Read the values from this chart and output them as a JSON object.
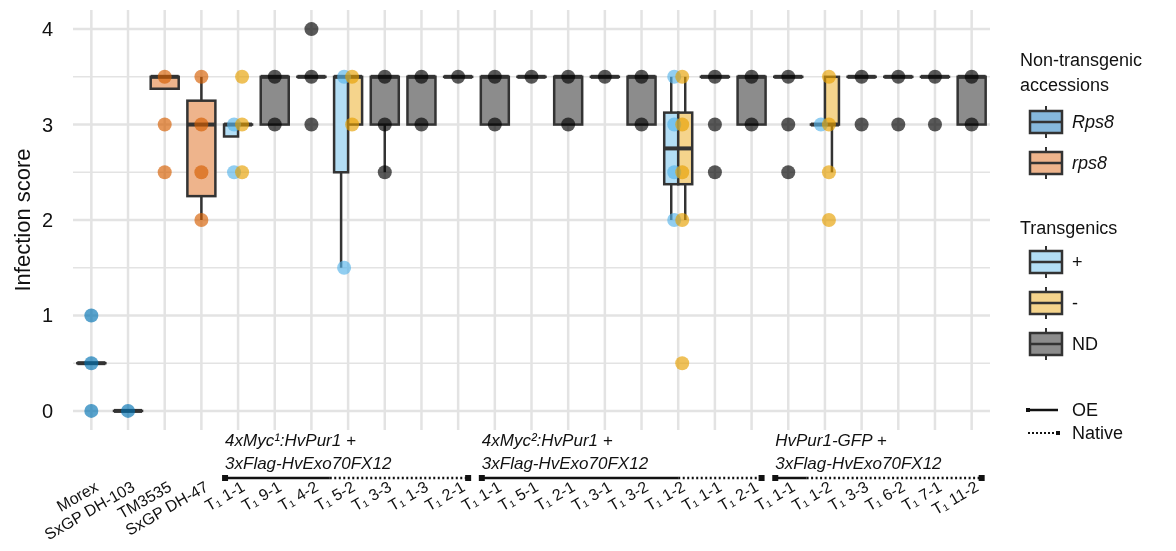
{
  "chart_data": {
    "type": "box",
    "ylabel": "Infection score",
    "categories": [
      "Morex",
      "SxGP DH-103",
      "TM3535",
      "SxGP DH-47",
      "T₁ 1-1",
      "T₁ 9-1",
      "T₁ 4-2",
      "T₁ 5-2",
      "T₁ 3-3",
      "T₁ 1-3",
      "T₁ 2-1",
      "T₁ 1-1",
      "T₁ 5-1",
      "T₁ 2-1",
      "T₁ 3-1",
      "T₁ 3-2",
      "T₁ 1-2",
      "T₁ 1-1",
      "T₁ 2-1",
      "T₁ 1-1",
      "T₁ 1-2",
      "T₁ 3-3",
      "T₁ 6-2",
      "T₁ 7-1",
      "T₁ 11-2"
    ],
    "ylim": [
      -0.2,
      4.2
    ],
    "yticks": [
      0,
      {
        "value": 0.5,
        "label": null
      },
      1,
      {
        "value": 1.5,
        "label": null
      },
      2,
      {
        "value": 2.5,
        "label": null
      },
      3,
      {
        "value": 3.5,
        "label": null
      },
      4
    ],
    "grid": true,
    "legend": "right",
    "marker": "circle",
    "legend_title": "Non-transgenic accessions",
    "annotations": [
      "4xMyc¹:HvPur1 +\n3xFlag-HvExo70FX12",
      "4xMyc²:HvPur1 +\n3xFlag-HvExo70FX12",
      "HvPur1-GFP +\n3xFlag-HvExo70FX12",
      "Transgenics",
      "OE",
      "Native"
    ],
    "series": [
      {
        "type": "box",
        "name": "Rps8",
        "color": "#86b8dc",
        "boxes": [
          {
            "low": 0.5,
            "q1": 0.5,
            "median": 0.5,
            "q3": 0.5,
            "high": 0.5
          },
          {
            "low": 0,
            "q1": 0,
            "median": 0,
            "q3": 0,
            "high": 0
          },
          null,
          null,
          null,
          null,
          null,
          null,
          null,
          null,
          null,
          null,
          null,
          null,
          null,
          null,
          null,
          null,
          null,
          null,
          null,
          null,
          null,
          null,
          null
        ]
      },
      {
        "type": "box",
        "name": "rps8",
        "color": "#eeb48c",
        "boxes": [
          null,
          null,
          {
            "low": 3.375,
            "q1": 3.375,
            "median": 3.5,
            "q3": 3.5,
            "high": 3.5
          },
          {
            "low": 2,
            "q1": 2.25,
            "median": 3,
            "q3": 3.25,
            "high": 3.5
          },
          null,
          null,
          null,
          null,
          null,
          null,
          null,
          null,
          null,
          null,
          null,
          null,
          null,
          null,
          null,
          null,
          null,
          null,
          null,
          null,
          null
        ]
      },
      {
        "type": "box",
        "name": "+",
        "color": "#b3def5",
        "boxes": [
          null,
          null,
          null,
          null,
          {
            "low": 2.875,
            "q1": 2.875,
            "median": 3,
            "q3": 3,
            "high": 3
          },
          null,
          null,
          {
            "low": 1.5,
            "q1": 2.5,
            "median": 3.5,
            "q3": 3.5,
            "high": 3.5
          },
          null,
          null,
          null,
          null,
          null,
          null,
          null,
          null,
          {
            "low": 2,
            "q1": 2.375,
            "median": 2.75,
            "q3": 3.125,
            "high": 3.5
          },
          null,
          null,
          null,
          {
            "low": 3,
            "q1": 3,
            "median": 3,
            "q3": 3,
            "high": 3
          },
          null,
          null,
          null,
          null
        ]
      },
      {
        "type": "box",
        "name": "-",
        "color": "#f5d48c",
        "boxes": [
          null,
          null,
          null,
          null,
          {
            "low": 3,
            "q1": 3,
            "median": 3,
            "q3": 3,
            "high": 3
          },
          null,
          null,
          {
            "low": 3,
            "q1": 3,
            "median": 3.5,
            "q3": 3.5,
            "high": 3.5
          },
          null,
          null,
          null,
          null,
          null,
          null,
          null,
          null,
          {
            "low": 2,
            "q1": 2.375,
            "median": 2.75,
            "q3": 3.125,
            "high": 3.5
          },
          null,
          null,
          null,
          {
            "low": 2.5,
            "q1": 3,
            "median": 3,
            "q3": 3.5,
            "high": 3.5
          },
          null,
          null,
          null,
          null
        ]
      },
      {
        "type": "box",
        "name": "ND",
        "color": "#8c8c8c",
        "boxes": [
          null,
          null,
          null,
          null,
          null,
          {
            "low": 3,
            "q1": 3,
            "median": 3.5,
            "q3": 3.5,
            "high": 3.5
          },
          {
            "low": 3.5,
            "q1": 3.5,
            "median": 3.5,
            "q3": 3.5,
            "high": 3.5
          },
          null,
          {
            "low": 2.5,
            "q1": 3,
            "median": 3.5,
            "q3": 3.5,
            "high": 3.5
          },
          {
            "low": 3,
            "q1": 3,
            "median": 3.5,
            "q3": 3.5,
            "high": 3.5
          },
          {
            "low": 3.5,
            "q1": 3.5,
            "median": 3.5,
            "q3": 3.5,
            "high": 3.5
          },
          {
            "low": 3,
            "q1": 3,
            "median": 3.5,
            "q3": 3.5,
            "high": 3.5
          },
          {
            "low": 3.5,
            "q1": 3.5,
            "median": 3.5,
            "q3": 3.5,
            "high": 3.5
          },
          {
            "low": 3,
            "q1": 3,
            "median": 3.5,
            "q3": 3.5,
            "high": 3.5
          },
          {
            "low": 3.5,
            "q1": 3.5,
            "median": 3.5,
            "q3": 3.5,
            "high": 3.5
          },
          {
            "low": 3,
            "q1": 3,
            "median": 3.5,
            "q3": 3.5,
            "high": 3.5
          },
          null,
          {
            "low": 3.5,
            "q1": 3.5,
            "median": 3.5,
            "q3": 3.5,
            "high": 3.5
          },
          {
            "low": 3,
            "q1": 3,
            "median": 3.5,
            "q3": 3.5,
            "high": 3.5
          },
          {
            "low": 3.5,
            "q1": 3.5,
            "median": 3.5,
            "q3": 3.5,
            "high": 3.5
          },
          null,
          {
            "low": 3.5,
            "q1": 3.5,
            "median": 3.5,
            "q3": 3.5,
            "high": 3.5
          },
          {
            "low": 3.5,
            "q1": 3.5,
            "median": 3.5,
            "q3": 3.5,
            "high": 3.5
          },
          {
            "low": 3.5,
            "q1": 3.5,
            "median": 3.5,
            "q3": 3.5,
            "high": 3.5
          },
          {
            "low": 3,
            "q1": 3,
            "median": 3.5,
            "q3": 3.5,
            "high": 3.5
          }
        ]
      },
      {
        "type": "scatter",
        "color": "#0072b2",
        "values": [
          0,
          0,
          null,
          null,
          null,
          null,
          null,
          null,
          null,
          null,
          null,
          null,
          null,
          null,
          null,
          null,
          null,
          null,
          null,
          null,
          null,
          null,
          null,
          null,
          null
        ]
      },
      {
        "type": "scatter",
        "color": "#0072b2",
        "values": [
          0.5,
          null,
          null,
          null,
          null,
          null,
          null,
          null,
          null,
          null,
          null,
          null,
          null,
          null,
          null,
          null,
          null,
          null,
          null,
          null,
          null,
          null,
          null,
          null,
          null
        ]
      },
      {
        "type": "scatter",
        "color": "#0072b2",
        "values": [
          1,
          null,
          null,
          null,
          null,
          null,
          null,
          null,
          null,
          null,
          null,
          null,
          null,
          null,
          null,
          null,
          null,
          null,
          null,
          null,
          null,
          null,
          null,
          null,
          null
        ]
      },
      {
        "type": "scatter",
        "color": "#d55e00",
        "values": [
          null,
          null,
          3.5,
          3.5,
          null,
          null,
          null,
          null,
          null,
          null,
          null,
          null,
          null,
          null,
          null,
          null,
          null,
          null,
          null,
          null,
          null,
          null,
          null,
          null,
          null
        ]
      },
      {
        "type": "scatter",
        "color": "#d55e00",
        "values": [
          null,
          null,
          3,
          3,
          null,
          null,
          null,
          null,
          null,
          null,
          null,
          null,
          null,
          null,
          null,
          null,
          null,
          null,
          null,
          null,
          null,
          null,
          null,
          null,
          null
        ]
      },
      {
        "type": "scatter",
        "color": "#d55e00",
        "values": [
          null,
          null,
          2.5,
          2.5,
          null,
          null,
          null,
          null,
          null,
          null,
          null,
          null,
          null,
          null,
          null,
          null,
          null,
          null,
          null,
          null,
          null,
          null,
          null,
          null,
          null
        ]
      },
      {
        "type": "scatter",
        "color": "#d55e00",
        "values": [
          null,
          null,
          null,
          2,
          null,
          null,
          null,
          null,
          null,
          null,
          null,
          null,
          null,
          null,
          null,
          null,
          null,
          null,
          null,
          null,
          null,
          null,
          null,
          null,
          null
        ]
      },
      {
        "type": "scatter",
        "color": "#56b4e9",
        "values": [
          null,
          null,
          null,
          null,
          3,
          null,
          null,
          3.5,
          null,
          null,
          null,
          null,
          null,
          null,
          null,
          null,
          3.5,
          null,
          null,
          null,
          3,
          null,
          null,
          null,
          null
        ]
      },
      {
        "type": "scatter",
        "color": "#56b4e9",
        "values": [
          null,
          null,
          null,
          null,
          2.5,
          null,
          null,
          1.5,
          null,
          null,
          null,
          null,
          null,
          null,
          null,
          null,
          3,
          null,
          null,
          null,
          null,
          null,
          null,
          null,
          null
        ]
      },
      {
        "type": "scatter",
        "color": "#56b4e9",
        "values": [
          null,
          null,
          null,
          null,
          null,
          null,
          null,
          null,
          null,
          null,
          null,
          null,
          null,
          null,
          null,
          null,
          2.5,
          null,
          null,
          null,
          null,
          null,
          null,
          null,
          null
        ]
      },
      {
        "type": "scatter",
        "color": "#56b4e9",
        "values": [
          null,
          null,
          null,
          null,
          null,
          null,
          null,
          null,
          null,
          null,
          null,
          null,
          null,
          null,
          null,
          null,
          2,
          null,
          null,
          null,
          null,
          null,
          null,
          null,
          null
        ]
      },
      {
        "type": "scatter",
        "color": "#e69f00",
        "values": [
          null,
          null,
          null,
          null,
          3.5,
          null,
          null,
          3.5,
          null,
          null,
          null,
          null,
          null,
          null,
          null,
          null,
          3.5,
          null,
          null,
          null,
          3.5,
          null,
          null,
          null,
          null
        ]
      },
      {
        "type": "scatter",
        "color": "#e69f00",
        "values": [
          null,
          null,
          null,
          null,
          3,
          null,
          null,
          3,
          null,
          null,
          null,
          null,
          null,
          null,
          null,
          null,
          3,
          null,
          null,
          null,
          3,
          null,
          null,
          null,
          null
        ]
      },
      {
        "type": "scatter",
        "color": "#e69f00",
        "values": [
          null,
          null,
          null,
          null,
          2.5,
          null,
          null,
          null,
          null,
          null,
          null,
          null,
          null,
          null,
          null,
          null,
          2.5,
          null,
          null,
          null,
          2.5,
          null,
          null,
          null,
          null
        ]
      },
      {
        "type": "scatter",
        "color": "#e69f00",
        "values": [
          null,
          null,
          null,
          null,
          null,
          null,
          null,
          null,
          null,
          null,
          null,
          null,
          null,
          null,
          null,
          null,
          2,
          null,
          null,
          null,
          2,
          null,
          null,
          null,
          null
        ]
      },
      {
        "type": "scatter",
        "color": "#e69f00",
        "values": [
          null,
          null,
          null,
          null,
          null,
          null,
          null,
          null,
          null,
          null,
          null,
          null,
          null,
          null,
          null,
          null,
          0.5,
          null,
          null,
          null,
          null,
          null,
          null,
          null,
          null
        ]
      },
      {
        "type": "scatter",
        "color": "#000000",
        "values": [
          null,
          null,
          null,
          null,
          null,
          3.5,
          4,
          null,
          3.5,
          3.5,
          3.5,
          3.5,
          3.5,
          3.5,
          3.5,
          3.5,
          null,
          3.5,
          3.5,
          3.5,
          null,
          3.5,
          3.5,
          3.5,
          3.5
        ]
      },
      {
        "type": "scatter",
        "color": "#000000",
        "values": [
          null,
          null,
          null,
          null,
          null,
          3,
          3.5,
          null,
          3,
          3,
          null,
          3,
          null,
          3,
          null,
          3,
          null,
          3,
          3,
          3,
          null,
          3,
          3,
          3,
          3
        ]
      },
      {
        "type": "scatter",
        "color": "#000000",
        "values": [
          null,
          null,
          null,
          null,
          null,
          null,
          3,
          null,
          2.5,
          null,
          null,
          null,
          null,
          null,
          null,
          null,
          null,
          2.5,
          null,
          2.5,
          null,
          null,
          null,
          null,
          null
        ]
      }
    ]
  }
}
